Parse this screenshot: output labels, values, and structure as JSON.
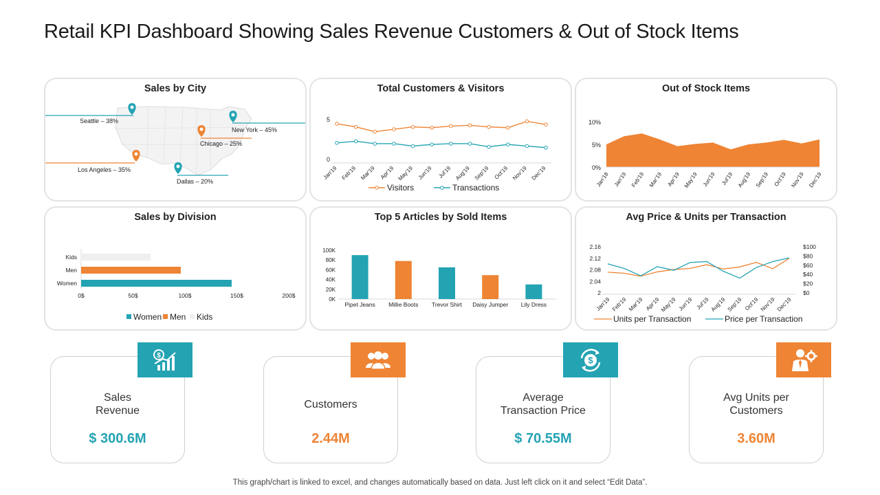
{
  "title": "Retail KPI Dashboard Showing Sales Revenue Customers & Out of Stock Items",
  "colors": {
    "teal": "#24a3b3",
    "orange": "#ee8434",
    "light": "#efefef",
    "panel_border": "#e3e3e3"
  },
  "panels": {
    "sales_by_city": "Sales by City",
    "customers_visitors": "Total Customers  & Visitors",
    "out_of_stock": "Out of Stock Items",
    "sales_by_division": "Sales by Division",
    "top_articles": "Top 5 Articles by Sold Items",
    "avg_price_units": "Avg Price & Units per Transaction"
  },
  "cities": [
    {
      "name": "Seattle – 38%",
      "color": "teal"
    },
    {
      "name": "New York – 45%",
      "color": "teal"
    },
    {
      "name": "Chicago – 25%",
      "color": "orange"
    },
    {
      "name": "Los Angeles – 35%",
      "color": "orange"
    },
    {
      "name": "Dallas – 20%",
      "color": "teal"
    }
  ],
  "chart_data": [
    {
      "id": "visitors",
      "type": "line",
      "title": "Total Customers  & Visitors",
      "categories": [
        "Jan'19",
        "Feb'19",
        "Mar'19",
        "Apr'19",
        "May'19",
        "Jun'19",
        "Jul'19",
        "Aug'19",
        "Sep'19",
        "Oct'19",
        "Nov'19",
        "Dec'19"
      ],
      "series": [
        {
          "name": "Visitors",
          "color": "orange",
          "values": [
            4.4,
            4.0,
            3.4,
            3.7,
            4.0,
            3.9,
            4.1,
            4.2,
            4.0,
            3.9,
            4.7,
            4.3
          ]
        },
        {
          "name": "Transactions",
          "color": "teal",
          "values": [
            2.0,
            2.2,
            1.9,
            1.9,
            1.6,
            1.8,
            1.9,
            1.9,
            1.5,
            1.8,
            1.6,
            1.4
          ]
        }
      ],
      "ylim": [
        0,
        5
      ],
      "yticks": [
        "0",
        "5"
      ]
    },
    {
      "id": "stock",
      "type": "area",
      "title": "Out of Stock Items",
      "categories": [
        "Jan'18",
        "Jan'19",
        "Feb'19",
        "Mar'19",
        "Apr'19",
        "May'19",
        "Jun'19",
        "Jul'19",
        "Aug'19",
        "Sep'19",
        "Oct'19",
        "Nov'19",
        "Dec'19"
      ],
      "values": [
        5.0,
        6.8,
        7.4,
        6.1,
        4.6,
        5.1,
        5.4,
        3.9,
        5.0,
        5.4,
        6.0,
        5.2,
        6.1
      ],
      "ylim": [
        0,
        10
      ],
      "yticks": [
        "0%",
        "5%",
        "10%"
      ],
      "color": "orange"
    },
    {
      "id": "division",
      "type": "bar",
      "orientation": "horizontal",
      "title": "Sales by Division",
      "categories": [
        "Kids",
        "Men",
        "Women"
      ],
      "values": [
        67,
        96,
        145
      ],
      "colors": [
        "light",
        "orange",
        "teal"
      ],
      "xlim": [
        0,
        200
      ],
      "xticks": [
        "0$",
        "50$",
        "100$",
        "150$",
        "200$"
      ],
      "legend": [
        "Women",
        "Men",
        "Kids"
      ]
    },
    {
      "id": "articles",
      "type": "bar",
      "title": "Top 5 Articles by Sold Items",
      "categories": [
        "Pipet Jeans",
        "Millie Boots",
        "Trevor Shirt",
        "Daisy Jumper",
        "Lily Dress"
      ],
      "values": [
        90000,
        78000,
        65000,
        49000,
        30000
      ],
      "colors": [
        "teal",
        "orange",
        "teal",
        "orange",
        "teal"
      ],
      "ylim": [
        0,
        100000
      ],
      "yticks": [
        "0K",
        "20K",
        "40K",
        "60K",
        "80K",
        "100K"
      ]
    },
    {
      "id": "price",
      "type": "line",
      "title": "Avg Price & Units per Transaction",
      "categories": [
        "Jan'19",
        "Feb'19",
        "Mar'19",
        "Apr'19",
        "May'19",
        "Jun'19",
        "Jul'19",
        "Aug'19",
        "Sep'19",
        "Oct'19",
        "Nov'19",
        "Dec'19"
      ],
      "series": [
        {
          "name": "Units per Transaction",
          "color": "orange",
          "axis": "left",
          "values": [
            2.072,
            2.068,
            2.058,
            2.073,
            2.081,
            2.085,
            2.098,
            2.083,
            2.09,
            2.106,
            2.084,
            2.12
          ]
        },
        {
          "name": "Price per Transaction",
          "color": "teal",
          "axis": "right",
          "values": [
            63,
            53,
            37,
            57,
            49,
            66,
            68,
            47,
            32,
            55,
            68,
            76
          ]
        }
      ],
      "ylim_left": [
        2,
        2.16
      ],
      "yticks_left": [
        "2",
        "2.04",
        "2.08",
        "2.12",
        "2.16"
      ],
      "ylim_right": [
        0,
        100
      ],
      "yticks_right": [
        "$0",
        "$20",
        "$40",
        "$60",
        "$80",
        "$100"
      ]
    }
  ],
  "kpis": [
    {
      "label": "Sales\nRevenue",
      "value": "$ 300.6M",
      "color": "teal",
      "icon": "revenue-chart-icon"
    },
    {
      "label": "Customers",
      "value": "2.44M",
      "color": "orange",
      "icon": "people-icon"
    },
    {
      "label": "Average\nTransaction Price",
      "value": "$ 70.55M",
      "color": "teal",
      "icon": "dollar-cycle-icon"
    },
    {
      "label": "Avg Units per\nCustomers",
      "value": "3.60M",
      "color": "orange",
      "icon": "businessman-gear-icon"
    }
  ],
  "footer": "This graph/chart is linked to excel,  and changes automatically based on data. Just left click on it and select “Edit Data”."
}
